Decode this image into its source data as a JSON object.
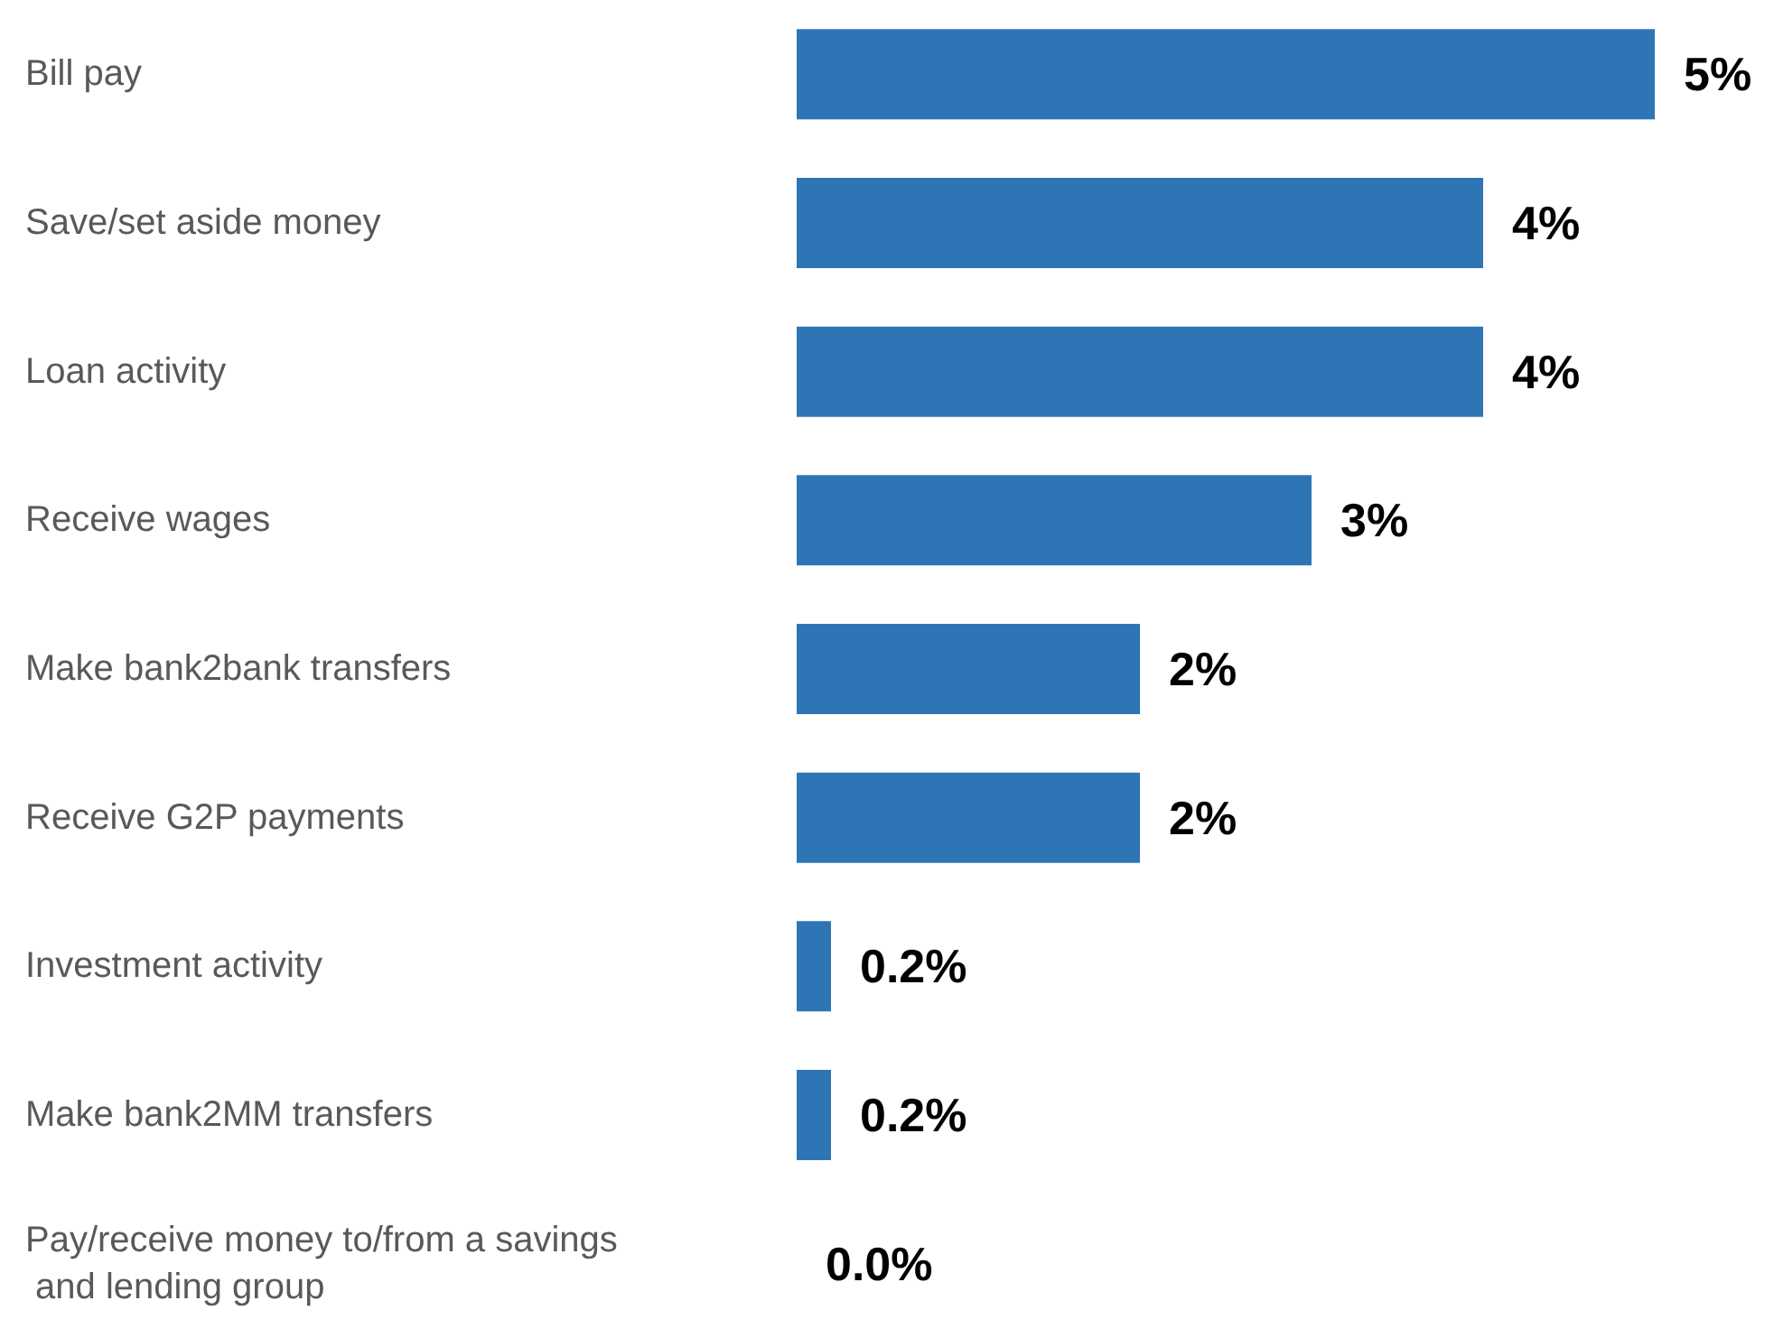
{
  "chart_data": {
    "type": "bar",
    "orientation": "horizontal",
    "categories": [
      "Bill pay",
      "Save/set aside money",
      "Loan activity",
      "Receive wages",
      "Make bank2bank transfers",
      "Receive G2P payments",
      "Investment activity",
      "Make bank2MM transfers",
      "Pay/receive money to/from a savings and lending group"
    ],
    "values": [
      5,
      4,
      4,
      3,
      2,
      2,
      0.2,
      0.2,
      0.0
    ],
    "value_labels": [
      "5%",
      "4%",
      "4%",
      "3%",
      "2%",
      "2%",
      "0.2%",
      "0.2%",
      "0.0%"
    ],
    "color": "#2e75b6",
    "tick_labels": "y"
  }
}
